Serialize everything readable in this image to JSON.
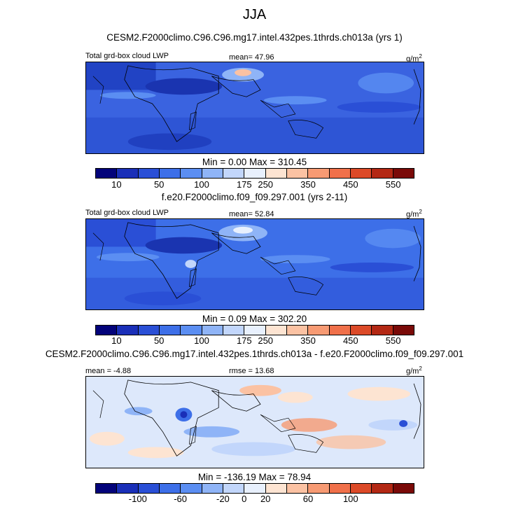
{
  "title": "JJA",
  "panels": [
    {
      "subtitle": "CESM2.F2000climo.C96.C96.mg17.intel.432pes.1thrds.ch013a (yrs 1)",
      "left_label": "Total grd-box cloud LWP",
      "center_label": "mean=  47.96",
      "units_base": "g/m",
      "units_exp": "2",
      "minmax": "Min =   0.00 Max = 310.45",
      "colorbar_ticks": [
        "10",
        "50",
        "100",
        "175",
        "250",
        "350",
        "450",
        "550"
      ],
      "palette": "lwp"
    },
    {
      "subtitle": "f.e20.F2000climo.f09_f09.297.001 (yrs 2-11)",
      "left_label": "Total grd-box cloud LWP",
      "center_label": "mean=  52.84",
      "units_base": "g/m",
      "units_exp": "2",
      "minmax": "Min =   0.09 Max = 302.20",
      "colorbar_ticks": [
        "10",
        "50",
        "100",
        "175",
        "250",
        "350",
        "450",
        "550"
      ],
      "palette": "lwp"
    },
    {
      "subtitle": "CESM2.F2000climo.C96.C96.mg17.intel.432pes.1thrds.ch013a - f.e20.F2000climo.f09_f09.297.001",
      "left_label": "mean =  -4.88",
      "center_label": "rmse =  13.68",
      "units_base": "g/m",
      "units_exp": "2",
      "minmax": "Min = -136.19 Max =  78.94",
      "colorbar_ticks": [
        "-100",
        "-60",
        "-20",
        "0",
        "20",
        "60",
        "100"
      ],
      "palette": "diff"
    }
  ],
  "colors": {
    "lwp_scale": [
      "#03037a",
      "#1a2fb8",
      "#2a4fd6",
      "#3d6fe8",
      "#5b8ef2",
      "#8fb4f7",
      "#c2d6fb",
      "#e8f0fd",
      "#fde4d2",
      "#fbc2a3",
      "#f79a73",
      "#f0704a",
      "#dc4a28",
      "#b32814",
      "#7a0a08"
    ],
    "diff_scale": [
      "#03037a",
      "#1a2fb8",
      "#2a4fd6",
      "#3d6fe8",
      "#5b8ef2",
      "#8fb4f7",
      "#c2d6fb",
      "#e8f0fd",
      "#fde4d2",
      "#fbc2a3",
      "#f79a73",
      "#f0704a",
      "#dc4a28",
      "#b32814",
      "#7a0a08"
    ],
    "map_base_lwp": "#3a63e0",
    "map_base_diff": "#dde8fb"
  }
}
